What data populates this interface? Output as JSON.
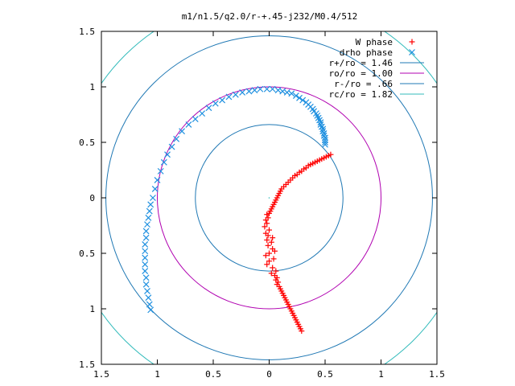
{
  "chart_data": {
    "type": "scatter",
    "title": "m1/n1.5/q2.0/r-+.45-j232/M0.4/512",
    "xlabel": "",
    "ylabel": "",
    "xlim": [
      -1.5,
      1.5
    ],
    "ylim": [
      -1.5,
      1.5
    ],
    "grid": false,
    "legend_position": "top-right",
    "x_ticks": [
      {
        "value": -1.5,
        "label": "1.5"
      },
      {
        "value": -1.0,
        "label": "1"
      },
      {
        "value": -0.5,
        "label": "0.5"
      },
      {
        "value": 0.0,
        "label": "0"
      },
      {
        "value": 0.5,
        "label": "0.5"
      },
      {
        "value": 1.0,
        "label": "1"
      },
      {
        "value": 1.5,
        "label": "1.5"
      }
    ],
    "y_ticks": [
      {
        "value": 1.5,
        "label": "1.5"
      },
      {
        "value": 1.0,
        "label": "1"
      },
      {
        "value": 0.5,
        "label": "0.5"
      },
      {
        "value": 0.0,
        "label": "0"
      },
      {
        "value": -0.5,
        "label": "0.5"
      },
      {
        "value": -1.0,
        "label": "1"
      },
      {
        "value": -1.5,
        "label": "1.5"
      }
    ],
    "circles": [
      {
        "name": "r+/ro = 1.46",
        "radius": 1.46,
        "color": "#1f78b4"
      },
      {
        "name": "ro/ro = 1.00",
        "radius": 1.0,
        "color": "#b000b0"
      },
      {
        "name": "r-/ro = .66",
        "radius": 0.66,
        "color": "#1f78b4"
      },
      {
        "name": "rc/ro = 1.82",
        "radius": 1.82,
        "color": "#33bbbb"
      }
    ],
    "series": [
      {
        "name": "W phase",
        "marker": "plus",
        "color": "#ff0000",
        "points": [
          [
            0.55,
            0.39
          ],
          [
            0.53,
            0.38
          ],
          [
            0.51,
            0.37
          ],
          [
            0.49,
            0.36
          ],
          [
            0.47,
            0.35
          ],
          [
            0.45,
            0.34
          ],
          [
            0.43,
            0.33
          ],
          [
            0.41,
            0.32
          ],
          [
            0.39,
            0.31
          ],
          [
            0.37,
            0.3
          ],
          [
            0.35,
            0.29
          ],
          [
            0.33,
            0.27
          ],
          [
            0.31,
            0.26
          ],
          [
            0.29,
            0.24
          ],
          [
            0.27,
            0.23
          ],
          [
            0.25,
            0.21
          ],
          [
            0.23,
            0.2
          ],
          [
            0.21,
            0.18
          ],
          [
            0.19,
            0.16
          ],
          [
            0.17,
            0.14
          ],
          [
            0.15,
            0.12
          ],
          [
            0.13,
            0.1
          ],
          [
            0.11,
            0.08
          ],
          [
            0.1,
            0.06
          ],
          [
            0.09,
            0.04
          ],
          [
            0.08,
            0.02
          ],
          [
            0.07,
            0.0
          ],
          [
            0.06,
            -0.02
          ],
          [
            0.05,
            -0.04
          ],
          [
            0.04,
            -0.06
          ],
          [
            0.03,
            -0.08
          ],
          [
            0.02,
            -0.1
          ],
          [
            0.01,
            -0.12
          ],
          [
            0.0,
            -0.14
          ],
          [
            -0.02,
            -0.15
          ],
          [
            -0.01,
            -0.18
          ],
          [
            -0.03,
            -0.2
          ],
          [
            -0.02,
            -0.23
          ],
          [
            -0.04,
            -0.26
          ],
          [
            0.0,
            -0.29
          ],
          [
            -0.03,
            -0.32
          ],
          [
            -0.01,
            -0.34
          ],
          [
            0.03,
            -0.36
          ],
          [
            -0.02,
            -0.38
          ],
          [
            0.02,
            -0.4
          ],
          [
            -0.01,
            -0.43
          ],
          [
            0.03,
            -0.46
          ],
          [
            0.05,
            -0.48
          ],
          [
            0.0,
            -0.5
          ],
          [
            -0.03,
            -0.52
          ],
          [
            0.04,
            -0.55
          ],
          [
            0.0,
            -0.57
          ],
          [
            -0.02,
            -0.6
          ],
          [
            0.03,
            -0.63
          ],
          [
            0.06,
            -0.66
          ],
          [
            0.02,
            -0.68
          ],
          [
            0.05,
            -0.7
          ],
          [
            0.07,
            -0.72
          ],
          [
            0.06,
            -0.74
          ],
          [
            0.08,
            -0.76
          ],
          [
            0.07,
            -0.78
          ],
          [
            0.09,
            -0.8
          ],
          [
            0.1,
            -0.82
          ],
          [
            0.11,
            -0.84
          ],
          [
            0.12,
            -0.86
          ],
          [
            0.13,
            -0.88
          ],
          [
            0.14,
            -0.9
          ],
          [
            0.15,
            -0.92
          ],
          [
            0.16,
            -0.94
          ],
          [
            0.17,
            -0.96
          ],
          [
            0.18,
            -0.98
          ],
          [
            0.19,
            -1.0
          ],
          [
            0.2,
            -1.02
          ],
          [
            0.21,
            -1.04
          ],
          [
            0.22,
            -1.06
          ],
          [
            0.23,
            -1.08
          ],
          [
            0.24,
            -1.1
          ],
          [
            0.25,
            -1.12
          ],
          [
            0.26,
            -1.14
          ],
          [
            0.27,
            -1.16
          ],
          [
            0.28,
            -1.18
          ],
          [
            0.29,
            -1.2
          ]
        ]
      },
      {
        "name": "drho phase",
        "marker": "cross",
        "color": "#1f90e0",
        "points": [
          [
            0.5,
            0.48
          ],
          [
            0.5,
            0.5
          ],
          [
            0.5,
            0.52
          ],
          [
            0.5,
            0.54
          ],
          [
            0.49,
            0.56
          ],
          [
            0.49,
            0.58
          ],
          [
            0.48,
            0.6
          ],
          [
            0.48,
            0.62
          ],
          [
            0.47,
            0.64
          ],
          [
            0.46,
            0.66
          ],
          [
            0.46,
            0.68
          ],
          [
            0.45,
            0.7
          ],
          [
            0.44,
            0.72
          ],
          [
            0.43,
            0.74
          ],
          [
            0.42,
            0.76
          ],
          [
            0.4,
            0.78
          ],
          [
            0.39,
            0.8
          ],
          [
            0.37,
            0.82
          ],
          [
            0.35,
            0.84
          ],
          [
            0.33,
            0.86
          ],
          [
            0.3,
            0.88
          ],
          [
            0.27,
            0.9
          ],
          [
            0.24,
            0.92
          ],
          [
            0.2,
            0.94
          ],
          [
            0.16,
            0.95
          ],
          [
            0.12,
            0.96
          ],
          [
            0.08,
            0.97
          ],
          [
            0.03,
            0.98
          ],
          [
            -0.02,
            0.98
          ],
          [
            -0.08,
            0.98
          ],
          [
            -0.13,
            0.97
          ],
          [
            -0.18,
            0.96
          ],
          [
            -0.24,
            0.95
          ],
          [
            -0.3,
            0.93
          ],
          [
            -0.36,
            0.91
          ],
          [
            -0.42,
            0.88
          ],
          [
            -0.48,
            0.85
          ],
          [
            -0.54,
            0.81
          ],
          [
            -0.6,
            0.76
          ],
          [
            -0.66,
            0.71
          ],
          [
            -0.72,
            0.66
          ],
          [
            -0.78,
            0.6
          ],
          [
            -0.83,
            0.53
          ],
          [
            -0.87,
            0.46
          ],
          [
            -0.91,
            0.39
          ],
          [
            -0.94,
            0.32
          ],
          [
            -0.97,
            0.24
          ],
          [
            -1.0,
            0.16
          ],
          [
            -1.02,
            0.08
          ],
          [
            -1.04,
            0.0
          ],
          [
            -1.06,
            -0.06
          ],
          [
            -1.07,
            -0.12
          ],
          [
            -1.08,
            -0.18
          ],
          [
            -1.09,
            -0.24
          ],
          [
            -1.1,
            -0.3
          ],
          [
            -1.1,
            -0.36
          ],
          [
            -1.11,
            -0.42
          ],
          [
            -1.11,
            -0.48
          ],
          [
            -1.11,
            -0.54
          ],
          [
            -1.11,
            -0.6
          ],
          [
            -1.11,
            -0.66
          ],
          [
            -1.1,
            -0.72
          ],
          [
            -1.1,
            -0.78
          ],
          [
            -1.09,
            -0.84
          ],
          [
            -1.08,
            -0.9
          ],
          [
            -1.07,
            -0.96
          ],
          [
            -1.06,
            -1.01
          ]
        ]
      }
    ]
  }
}
